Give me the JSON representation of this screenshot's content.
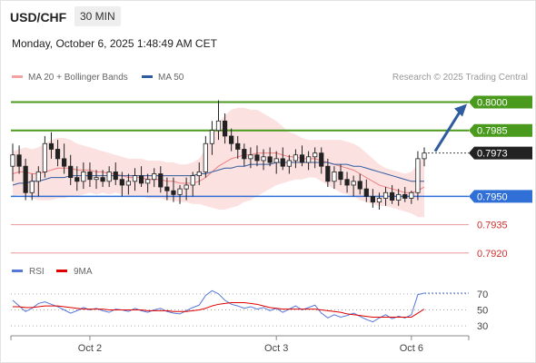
{
  "header": {
    "symbol": "USD/CHF",
    "timeframe": "30 MIN"
  },
  "datetime": "Monday, October 6, 2025 1:48:49 AM CET",
  "legend": {
    "ma20": {
      "label": "MA 20 + Bollinger Bands",
      "color": "#f08080"
    },
    "ma50": {
      "label": "MA 50",
      "color": "#2f5b9f"
    }
  },
  "copyright": "Research © 2025 Trading Central",
  "rsi_legend": {
    "rsi": {
      "label": "RSI",
      "color": "#5577d8"
    },
    "ma9": {
      "label": "9MA",
      "color": "#e00000"
    }
  },
  "chart_data": {
    "type": "candlestick",
    "x_tick_labels": [
      "Oct 2",
      "Oct 3",
      "Oct 6"
    ],
    "ylim": [
      0.7917,
      0.8007
    ],
    "last_price": "0.7973",
    "levels": [
      {
        "label": "0.8000",
        "value": 0.8,
        "kind": "resistance",
        "color": "#4a9a1e"
      },
      {
        "label": "0.7985",
        "value": 0.7985,
        "kind": "resistance",
        "color": "#4a9a1e"
      },
      {
        "label": "0.7950",
        "value": 0.795,
        "kind": "pivot",
        "color": "#2f6fd6"
      },
      {
        "label": "0.7935",
        "value": 0.7935,
        "kind": "support",
        "color": "#e05555"
      },
      {
        "label": "0.7920",
        "value": 0.792,
        "kind": "support",
        "color": "#e05555"
      }
    ],
    "rsi_levels": [
      "70",
      "50",
      "30"
    ],
    "candles": [
      [
        0.7966,
        0.7978,
        0.7958,
        0.7972
      ],
      [
        0.7972,
        0.7977,
        0.7962,
        0.7966
      ],
      [
        0.7966,
        0.797,
        0.7948,
        0.7952
      ],
      [
        0.7952,
        0.7962,
        0.7948,
        0.7958
      ],
      [
        0.7958,
        0.7966,
        0.795,
        0.7963
      ],
      [
        0.7963,
        0.7982,
        0.796,
        0.7978
      ],
      [
        0.7978,
        0.7984,
        0.797,
        0.7975
      ],
      [
        0.7975,
        0.798,
        0.7966,
        0.797
      ],
      [
        0.797,
        0.7978,
        0.7962,
        0.7966
      ],
      [
        0.7966,
        0.7972,
        0.7956,
        0.796
      ],
      [
        0.796,
        0.7966,
        0.7953,
        0.7958
      ],
      [
        0.7958,
        0.7968,
        0.7954,
        0.7963
      ],
      [
        0.7963,
        0.7968,
        0.7955,
        0.7959
      ],
      [
        0.7959,
        0.7964,
        0.7954,
        0.796
      ],
      [
        0.796,
        0.7964,
        0.7955,
        0.7958
      ],
      [
        0.7958,
        0.7966,
        0.7955,
        0.7963
      ],
      [
        0.7963,
        0.7968,
        0.7956,
        0.7959
      ],
      [
        0.7959,
        0.7963,
        0.795,
        0.7956
      ],
      [
        0.7956,
        0.7962,
        0.7951,
        0.7958
      ],
      [
        0.7958,
        0.7965,
        0.7953,
        0.7961
      ],
      [
        0.7961,
        0.7966,
        0.7955,
        0.7957
      ],
      [
        0.7957,
        0.7962,
        0.7952,
        0.7959
      ],
      [
        0.7959,
        0.7965,
        0.7955,
        0.7962
      ],
      [
        0.7962,
        0.7966,
        0.7952,
        0.7955
      ],
      [
        0.7955,
        0.796,
        0.7948,
        0.7953
      ],
      [
        0.7953,
        0.796,
        0.7947,
        0.7951
      ],
      [
        0.7951,
        0.7956,
        0.7946,
        0.7954
      ],
      [
        0.7954,
        0.796,
        0.7948,
        0.7956
      ],
      [
        0.7956,
        0.7963,
        0.795,
        0.7961
      ],
      [
        0.7961,
        0.7968,
        0.7956,
        0.7963
      ],
      [
        0.7963,
        0.7982,
        0.796,
        0.7978
      ],
      [
        0.7978,
        0.799,
        0.7972,
        0.7985
      ],
      [
        0.7985,
        0.8001,
        0.798,
        0.799
      ],
      [
        0.799,
        0.7994,
        0.7978,
        0.7982
      ],
      [
        0.7982,
        0.7986,
        0.7974,
        0.7978
      ],
      [
        0.7978,
        0.7982,
        0.797,
        0.7975
      ],
      [
        0.7975,
        0.7978,
        0.7966,
        0.797
      ],
      [
        0.797,
        0.7976,
        0.7965,
        0.7972
      ],
      [
        0.7972,
        0.7977,
        0.7966,
        0.7969
      ],
      [
        0.7969,
        0.7975,
        0.7964,
        0.7971
      ],
      [
        0.7971,
        0.7976,
        0.7966,
        0.7968
      ],
      [
        0.7968,
        0.7974,
        0.7962,
        0.797
      ],
      [
        0.797,
        0.7976,
        0.7964,
        0.7966
      ],
      [
        0.7966,
        0.7972,
        0.7962,
        0.7969
      ],
      [
        0.7969,
        0.7975,
        0.7965,
        0.7972
      ],
      [
        0.7972,
        0.7977,
        0.7966,
        0.7968
      ],
      [
        0.7968,
        0.7974,
        0.7964,
        0.7971
      ],
      [
        0.7971,
        0.7976,
        0.7965,
        0.7973
      ],
      [
        0.7973,
        0.7976,
        0.7962,
        0.7966
      ],
      [
        0.7966,
        0.797,
        0.7955,
        0.7958
      ],
      [
        0.7958,
        0.7966,
        0.7954,
        0.7963
      ],
      [
        0.7963,
        0.7967,
        0.7956,
        0.7959
      ],
      [
        0.7959,
        0.7963,
        0.7952,
        0.7956
      ],
      [
        0.7956,
        0.7961,
        0.795,
        0.7958
      ],
      [
        0.7958,
        0.7962,
        0.7951,
        0.7954
      ],
      [
        0.7954,
        0.7959,
        0.7947,
        0.795
      ],
      [
        0.795,
        0.7954,
        0.7944,
        0.7947
      ],
      [
        0.7947,
        0.7952,
        0.7943,
        0.7949
      ],
      [
        0.7949,
        0.7955,
        0.7945,
        0.7952
      ],
      [
        0.7952,
        0.7956,
        0.7946,
        0.7948
      ],
      [
        0.7948,
        0.7954,
        0.7945,
        0.7951
      ],
      [
        0.7951,
        0.7955,
        0.7947,
        0.7949
      ],
      [
        0.7949,
        0.7953,
        0.7946,
        0.7952
      ],
      [
        0.7952,
        0.7974,
        0.7948,
        0.797
      ],
      [
        0.797,
        0.7976,
        0.7966,
        0.7973
      ]
    ],
    "ma20": [
      0.7962,
      0.7963,
      0.7963,
      0.7962,
      0.7962,
      0.7963,
      0.7964,
      0.7965,
      0.7965,
      0.7965,
      0.7964,
      0.7964,
      0.7964,
      0.7963,
      0.7963,
      0.7962,
      0.7962,
      0.7961,
      0.796,
      0.796,
      0.796,
      0.7959,
      0.7959,
      0.7959,
      0.7958,
      0.7958,
      0.7957,
      0.7957,
      0.7957,
      0.7958,
      0.796,
      0.7963,
      0.7966,
      0.7968,
      0.797,
      0.7971,
      0.7972,
      0.7972,
      0.7973,
      0.7973,
      0.7973,
      0.7973,
      0.7972,
      0.7971,
      0.7971,
      0.797,
      0.797,
      0.797,
      0.7969,
      0.7968,
      0.7967,
      0.7966,
      0.7965,
      0.7964,
      0.7962,
      0.796,
      0.7958,
      0.7956,
      0.7955,
      0.7954,
      0.7953,
      0.7952,
      0.7952,
      0.7953,
      0.7955
    ],
    "bb_width": [
      0.0012,
      0.0012,
      0.0013,
      0.0013,
      0.0014,
      0.0015,
      0.0016,
      0.0016,
      0.0016,
      0.0015,
      0.0014,
      0.0013,
      0.0012,
      0.0012,
      0.0011,
      0.0011,
      0.001,
      0.001,
      0.001,
      0.001,
      0.001,
      0.001,
      0.001,
      0.001,
      0.001,
      0.001,
      0.001,
      0.001,
      0.0011,
      0.0012,
      0.0015,
      0.0019,
      0.0023,
      0.0025,
      0.0026,
      0.0026,
      0.0025,
      0.0024,
      0.0023,
      0.0021,
      0.0019,
      0.0017,
      0.0015,
      0.0013,
      0.0012,
      0.0011,
      0.001,
      0.001,
      0.0011,
      0.0012,
      0.0013,
      0.0014,
      0.0014,
      0.0014,
      0.0014,
      0.0013,
      0.0012,
      0.0011,
      0.001,
      0.001,
      0.001,
      0.001,
      0.0011,
      0.0014,
      0.0016
    ],
    "ma50": [
      0.7956,
      0.7957,
      0.7957,
      0.7958,
      0.7958,
      0.7959,
      0.796,
      0.796,
      0.796,
      0.7961,
      0.7961,
      0.7961,
      0.7961,
      0.7961,
      0.7961,
      0.7961,
      0.7961,
      0.7961,
      0.7961,
      0.7961,
      0.7961,
      0.7961,
      0.7961,
      0.7961,
      0.7961,
      0.7961,
      0.7961,
      0.7961,
      0.7961,
      0.7962,
      0.7962,
      0.7963,
      0.7964,
      0.7965,
      0.7965,
      0.7966,
      0.7966,
      0.7967,
      0.7967,
      0.7967,
      0.7967,
      0.7968,
      0.7968,
      0.7968,
      0.7968,
      0.7968,
      0.7968,
      0.7968,
      0.7968,
      0.7968,
      0.7967,
      0.7967,
      0.7967,
      0.7966,
      0.7966,
      0.7965,
      0.7964,
      0.7963,
      0.7962,
      0.7961,
      0.796,
      0.7959,
      0.7958,
      0.7958,
      0.7958
    ],
    "rsi": [
      62,
      55,
      48,
      52,
      58,
      60,
      57,
      54,
      50,
      46,
      49,
      53,
      50,
      52,
      49,
      47,
      51,
      50,
      48,
      52,
      49,
      47,
      50,
      52,
      48,
      46,
      45,
      49,
      53,
      56,
      68,
      74,
      70,
      62,
      57,
      55,
      52,
      54,
      51,
      53,
      49,
      52,
      47,
      51,
      55,
      50,
      53,
      56,
      46,
      40,
      44,
      41,
      43,
      46,
      42,
      38,
      35,
      40,
      44,
      39,
      42,
      40,
      44,
      69,
      71
    ],
    "rsi_ma9": [
      54,
      54,
      53,
      53,
      54,
      55,
      55,
      55,
      54,
      53,
      52,
      51,
      51,
      51,
      51,
      50,
      50,
      50,
      50,
      50,
      50,
      49,
      49,
      49,
      49,
      48,
      48,
      48,
      49,
      50,
      52,
      55,
      57,
      58,
      59,
      59,
      59,
      58,
      57,
      55,
      53,
      52,
      51,
      51,
      51,
      51,
      51,
      51,
      50,
      49,
      48,
      47,
      45,
      44,
      43,
      42,
      41,
      41,
      41,
      41,
      41,
      41,
      41,
      46,
      51
    ],
    "arrow_projection": {
      "from": 0.7973,
      "to": 0.8
    }
  }
}
